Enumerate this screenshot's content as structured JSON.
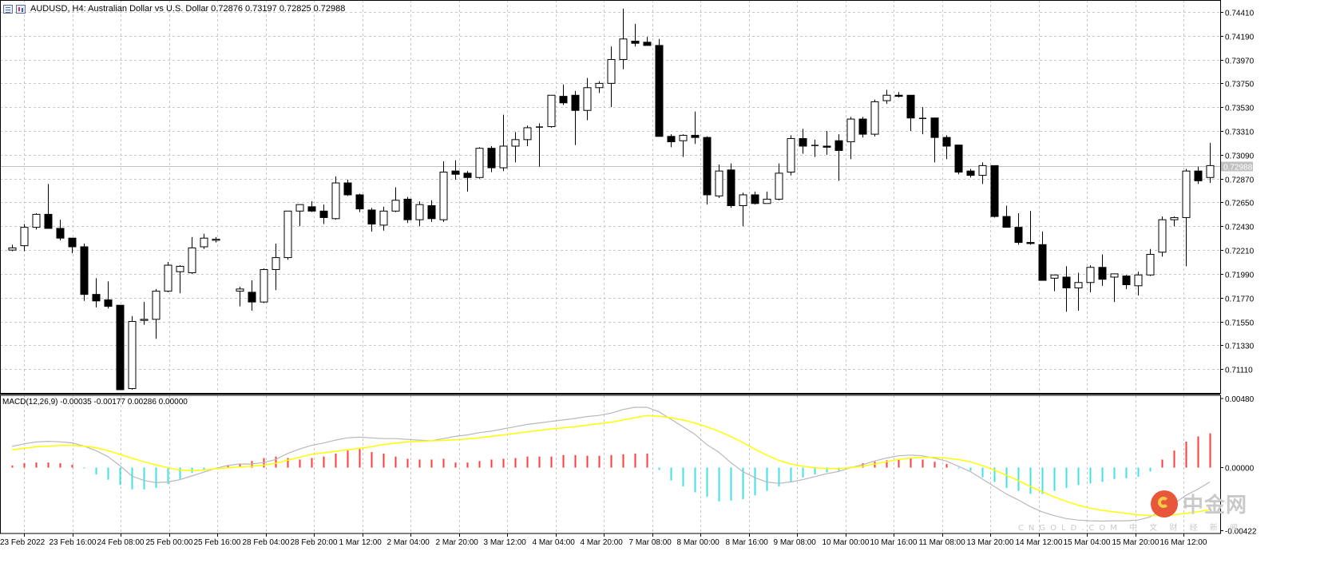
{
  "header": {
    "symbol_info": "AUDUSD, H4:  Australian Dollar vs U.S. Dollar  0.72876 0.73197 0.72825 0.72988",
    "icons": [
      "chart-bars-icon",
      "candles-icon"
    ]
  },
  "watermark": {
    "logo": "cngold-logo-icon",
    "name": "中金网",
    "url": "CNGOLD.COM",
    "tagline": "中 文 财 经 新 闻"
  },
  "colors": {
    "background": "#ffffff",
    "grid": "#c8c8c8",
    "bull_body": "#ffffff",
    "bear_body": "#000000",
    "candle_outline": "#000000",
    "macd_line": "#b8b8b8",
    "signal_line": "#ffff00",
    "hist_positive": "#ff3c3c",
    "hist_negative": "#40e0ea",
    "bid_line": "#c0c0c0",
    "bid_label_bg": "#c0c0c0"
  },
  "chart_data": [
    {
      "type": "candlestick",
      "title": "AUDUSD, H4",
      "price_scale": {
        "ylim": [
          0.7089,
          0.7452
        ],
        "tick_labels": [
          "0.74410",
          "0.74190",
          "0.73970",
          "0.73750",
          "0.73530",
          "0.73310",
          "0.73090",
          "0.72870",
          "0.72650",
          "0.72430",
          "0.72210",
          "0.71990",
          "0.71770",
          "0.71550",
          "0.71330",
          "0.71110"
        ],
        "current_bid_label": "0.72988",
        "current_bid": 0.72988
      },
      "grid": true,
      "time_labels": [
        "23 Feb 2022",
        "23 Feb 16:00",
        "24 Feb 08:00",
        "25 Feb 00:00",
        "25 Feb 16:00",
        "28 Feb 04:00",
        "28 Feb 20:00",
        "1 Mar 12:00",
        "2 Mar 04:00",
        "2 Mar 20:00",
        "3 Mar 12:00",
        "4 Mar 04:00",
        "4 Mar 20:00",
        "7 Mar 08:00",
        "8 Mar 00:00",
        "8 Mar 16:00",
        "9 Mar 08:00",
        "10 Mar 00:00",
        "10 Mar 16:00",
        "11 Mar 08:00",
        "13 Mar 20:00",
        "14 Mar 12:00",
        "15 Mar 04:00",
        "15 Mar 20:00",
        "16 Mar 12:00"
      ],
      "candles": [
        {
          "o": 0.7221,
          "h": 0.7226,
          "l": 0.722,
          "c": 0.7223
        },
        {
          "o": 0.7225,
          "h": 0.7245,
          "l": 0.722,
          "c": 0.7242
        },
        {
          "o": 0.7242,
          "h": 0.7255,
          "l": 0.724,
          "c": 0.7254
        },
        {
          "o": 0.7254,
          "h": 0.7282,
          "l": 0.7241,
          "c": 0.7241
        },
        {
          "o": 0.7241,
          "h": 0.7249,
          "l": 0.723,
          "c": 0.7232
        },
        {
          "o": 0.7232,
          "h": 0.7232,
          "l": 0.7218,
          "c": 0.7224
        },
        {
          "o": 0.7224,
          "h": 0.7227,
          "l": 0.7174,
          "c": 0.718
        },
        {
          "o": 0.718,
          "h": 0.7195,
          "l": 0.7168,
          "c": 0.7174
        },
        {
          "o": 0.7175,
          "h": 0.7192,
          "l": 0.7167,
          "c": 0.7169
        },
        {
          "o": 0.717,
          "h": 0.717,
          "l": 0.7092,
          "c": 0.7092
        },
        {
          "o": 0.7093,
          "h": 0.716,
          "l": 0.7092,
          "c": 0.7155
        },
        {
          "o": 0.7156,
          "h": 0.7173,
          "l": 0.7152,
          "c": 0.7157
        },
        {
          "o": 0.7157,
          "h": 0.7185,
          "l": 0.7139,
          "c": 0.7183
        },
        {
          "o": 0.7183,
          "h": 0.721,
          "l": 0.7182,
          "c": 0.7207
        },
        {
          "o": 0.7201,
          "h": 0.7207,
          "l": 0.7181,
          "c": 0.7206
        },
        {
          "o": 0.72,
          "h": 0.7233,
          "l": 0.7199,
          "c": 0.7223
        },
        {
          "o": 0.7224,
          "h": 0.7236,
          "l": 0.7222,
          "c": 0.7232
        },
        {
          "o": 0.723,
          "h": 0.7233,
          "l": 0.7228,
          "c": 0.7231
        },
        null,
        {
          "o": 0.7183,
          "h": 0.7187,
          "l": 0.7169,
          "c": 0.7185
        },
        {
          "o": 0.7182,
          "h": 0.7193,
          "l": 0.7165,
          "c": 0.7173
        },
        {
          "o": 0.7173,
          "h": 0.7204,
          "l": 0.7172,
          "c": 0.7203
        },
        {
          "o": 0.7203,
          "h": 0.7227,
          "l": 0.7184,
          "c": 0.7214
        },
        {
          "o": 0.7214,
          "h": 0.7255,
          "l": 0.7212,
          "c": 0.7257
        },
        {
          "o": 0.7257,
          "h": 0.7263,
          "l": 0.7243,
          "c": 0.7263
        },
        {
          "o": 0.7261,
          "h": 0.7266,
          "l": 0.7256,
          "c": 0.7257
        },
        {
          "o": 0.7257,
          "h": 0.7263,
          "l": 0.7245,
          "c": 0.7251
        },
        {
          "o": 0.725,
          "h": 0.7289,
          "l": 0.7249,
          "c": 0.7283
        },
        {
          "o": 0.7283,
          "h": 0.7286,
          "l": 0.7271,
          "c": 0.7272
        },
        {
          "o": 0.7272,
          "h": 0.7273,
          "l": 0.7256,
          "c": 0.7259
        },
        {
          "o": 0.7258,
          "h": 0.726,
          "l": 0.7238,
          "c": 0.7245
        },
        {
          "o": 0.7244,
          "h": 0.7261,
          "l": 0.7239,
          "c": 0.7257
        },
        {
          "o": 0.7257,
          "h": 0.7279,
          "l": 0.7256,
          "c": 0.7267
        },
        {
          "o": 0.7268,
          "h": 0.727,
          "l": 0.7246,
          "c": 0.7249
        },
        {
          "o": 0.7249,
          "h": 0.7266,
          "l": 0.7243,
          "c": 0.7263
        },
        {
          "o": 0.7262,
          "h": 0.7267,
          "l": 0.7247,
          "c": 0.725
        },
        {
          "o": 0.7249,
          "h": 0.7303,
          "l": 0.7247,
          "c": 0.7293
        },
        {
          "o": 0.7294,
          "h": 0.7304,
          "l": 0.7286,
          "c": 0.7291
        },
        {
          "o": 0.7292,
          "h": 0.7294,
          "l": 0.7275,
          "c": 0.7288
        },
        {
          "o": 0.7288,
          "h": 0.7316,
          "l": 0.7287,
          "c": 0.7315
        },
        {
          "o": 0.7315,
          "h": 0.7317,
          "l": 0.7293,
          "c": 0.7297
        },
        {
          "o": 0.7297,
          "h": 0.7346,
          "l": 0.7294,
          "c": 0.7317
        },
        {
          "o": 0.7317,
          "h": 0.733,
          "l": 0.7302,
          "c": 0.7323
        },
        {
          "o": 0.7323,
          "h": 0.7336,
          "l": 0.7317,
          "c": 0.7334
        },
        {
          "o": 0.7335,
          "h": 0.7338,
          "l": 0.7298,
          "c": 0.7335
        },
        {
          "o": 0.7335,
          "h": 0.7363,
          "l": 0.7334,
          "c": 0.7364
        },
        {
          "o": 0.7363,
          "h": 0.7374,
          "l": 0.7355,
          "c": 0.7357
        },
        {
          "o": 0.7364,
          "h": 0.7368,
          "l": 0.7318,
          "c": 0.735
        },
        {
          "o": 0.735,
          "h": 0.738,
          "l": 0.7341,
          "c": 0.7371
        },
        {
          "o": 0.7371,
          "h": 0.7377,
          "l": 0.7366,
          "c": 0.7375
        },
        {
          "o": 0.7375,
          "h": 0.7409,
          "l": 0.7353,
          "c": 0.7397
        },
        {
          "o": 0.7397,
          "h": 0.7444,
          "l": 0.7388,
          "c": 0.7416
        },
        {
          "o": 0.7414,
          "h": 0.743,
          "l": 0.7409,
          "c": 0.7412
        },
        {
          "o": 0.7413,
          "h": 0.7418,
          "l": 0.7411,
          "c": 0.741
        },
        {
          "o": 0.741,
          "h": 0.7416,
          "l": 0.7326,
          "c": 0.7326
        },
        {
          "o": 0.7326,
          "h": 0.7328,
          "l": 0.7316,
          "c": 0.7321
        },
        {
          "o": 0.7322,
          "h": 0.7328,
          "l": 0.7307,
          "c": 0.7327
        },
        {
          "o": 0.7327,
          "h": 0.7349,
          "l": 0.7319,
          "c": 0.7325
        },
        {
          "o": 0.7325,
          "h": 0.7326,
          "l": 0.7263,
          "c": 0.7272
        },
        {
          "o": 0.7271,
          "h": 0.73,
          "l": 0.7269,
          "c": 0.7294
        },
        {
          "o": 0.7295,
          "h": 0.7301,
          "l": 0.726,
          "c": 0.7262
        },
        {
          "o": 0.7262,
          "h": 0.7274,
          "l": 0.7243,
          "c": 0.7272
        },
        {
          "o": 0.7272,
          "h": 0.7275,
          "l": 0.7263,
          "c": 0.7264
        },
        {
          "o": 0.7264,
          "h": 0.7275,
          "l": 0.7265,
          "c": 0.7268
        },
        {
          "o": 0.7268,
          "h": 0.7301,
          "l": 0.7267,
          "c": 0.7292
        },
        {
          "o": 0.7293,
          "h": 0.7327,
          "l": 0.729,
          "c": 0.7324
        },
        {
          "o": 0.7324,
          "h": 0.7333,
          "l": 0.731,
          "c": 0.7317
        },
        {
          "o": 0.7318,
          "h": 0.7323,
          "l": 0.7307,
          "c": 0.7318
        },
        {
          "o": 0.7317,
          "h": 0.7331,
          "l": 0.7309,
          "c": 0.7316
        },
        {
          "o": 0.7322,
          "h": 0.7328,
          "l": 0.7285,
          "c": 0.7313
        },
        {
          "o": 0.7321,
          "h": 0.7344,
          "l": 0.7305,
          "c": 0.7342
        },
        {
          "o": 0.7342,
          "h": 0.7344,
          "l": 0.7325,
          "c": 0.7328
        },
        {
          "o": 0.7328,
          "h": 0.736,
          "l": 0.7326,
          "c": 0.7358
        },
        {
          "o": 0.7359,
          "h": 0.7369,
          "l": 0.7356,
          "c": 0.7364
        },
        {
          "o": 0.7364,
          "h": 0.7367,
          "l": 0.7362,
          "c": 0.7363
        },
        {
          "o": 0.7364,
          "h": 0.7364,
          "l": 0.7331,
          "c": 0.7343
        },
        {
          "o": 0.7343,
          "h": 0.7353,
          "l": 0.7328,
          "c": 0.7343
        },
        {
          "o": 0.7343,
          "h": 0.7343,
          "l": 0.7302,
          "c": 0.7325
        },
        {
          "o": 0.7325,
          "h": 0.7327,
          "l": 0.7305,
          "c": 0.7317
        },
        {
          "o": 0.7318,
          "h": 0.7318,
          "l": 0.7291,
          "c": 0.7293
        },
        {
          "o": 0.7294,
          "h": 0.7296,
          "l": 0.7288,
          "c": 0.729
        },
        {
          "o": 0.729,
          "h": 0.7302,
          "l": 0.7282,
          "c": 0.7299
        },
        {
          "o": 0.7299,
          "h": 0.7299,
          "l": 0.7251,
          "c": 0.7252
        },
        {
          "o": 0.7252,
          "h": 0.7262,
          "l": 0.7243,
          "c": 0.7242
        },
        {
          "o": 0.7242,
          "h": 0.7255,
          "l": 0.7226,
          "c": 0.7228
        },
        {
          "o": 0.7228,
          "h": 0.7257,
          "l": 0.7226,
          "c": 0.7227
        },
        {
          "o": 0.7226,
          "h": 0.7238,
          "l": 0.7193,
          "c": 0.7193
        },
        {
          "o": 0.7195,
          "h": 0.7196,
          "l": 0.7183,
          "c": 0.7198
        },
        {
          "o": 0.7196,
          "h": 0.7206,
          "l": 0.7164,
          "c": 0.7186
        },
        {
          "o": 0.7186,
          "h": 0.72,
          "l": 0.7165,
          "c": 0.7191
        },
        {
          "o": 0.7191,
          "h": 0.7207,
          "l": 0.7182,
          "c": 0.7205
        },
        {
          "o": 0.7205,
          "h": 0.7217,
          "l": 0.7188,
          "c": 0.7194
        },
        {
          "o": 0.7196,
          "h": 0.7199,
          "l": 0.7173,
          "c": 0.7199
        },
        {
          "o": 0.7197,
          "h": 0.7198,
          "l": 0.7185,
          "c": 0.7189
        },
        {
          "o": 0.7188,
          "h": 0.7201,
          "l": 0.7179,
          "c": 0.7198
        },
        {
          "o": 0.7198,
          "h": 0.7222,
          "l": 0.7197,
          "c": 0.7217
        },
        {
          "o": 0.7219,
          "h": 0.7252,
          "l": 0.7215,
          "c": 0.7249
        },
        {
          "o": 0.7249,
          "h": 0.7252,
          "l": 0.7243,
          "c": 0.7251
        },
        {
          "o": 0.7251,
          "h": 0.7296,
          "l": 0.7206,
          "c": 0.7294
        },
        {
          "o": 0.7294,
          "h": 0.7298,
          "l": 0.7282,
          "c": 0.7285
        },
        {
          "o": 0.7288,
          "h": 0.732,
          "l": 0.7283,
          "c": 0.7299
        }
      ]
    },
    {
      "type": "macd",
      "title": "MACD(12,26,9) -0.00035 -0.00177 0.00286 0.00000",
      "params": [
        12,
        26,
        9
      ],
      "ylim": [
        -0.00445,
        0.0048
      ],
      "tick_labels": [
        "0.00480",
        "0.00000",
        "-0.00422"
      ],
      "macd_line": [
        0.00138,
        0.00155,
        0.00168,
        0.00172,
        0.00169,
        0.00162,
        0.0014,
        0.0011,
        0.0007,
        0.0001,
        -0.0006,
        -0.0009,
        -0.00105,
        -0.001,
        -0.00085,
        -0.0006,
        -0.00035,
        -0.0001,
        0.0001,
        0.0002,
        0.0002,
        0.0003,
        0.0005,
        0.0009,
        0.0012,
        0.00145,
        0.0016,
        0.0018,
        0.00195,
        0.002,
        0.00195,
        0.0019,
        0.0019,
        0.00185,
        0.0018,
        0.00175,
        0.0019,
        0.00205,
        0.00215,
        0.0023,
        0.0024,
        0.00255,
        0.0027,
        0.00285,
        0.00295,
        0.00305,
        0.00315,
        0.00325,
        0.00338,
        0.00345,
        0.0036,
        0.00385,
        0.004,
        0.004,
        0.0037,
        0.0032,
        0.0027,
        0.0022,
        0.0015,
        0.001,
        0.0003,
        -0.0003,
        -0.0007,
        -0.001,
        -0.0011,
        -0.001,
        -0.00085,
        -0.00065,
        -0.00045,
        -0.0003,
        -5e-05,
        0.00015,
        0.0004,
        0.0006,
        0.00075,
        0.0008,
        0.00075,
        0.0006,
        0.0004,
        5e-05,
        -0.0003,
        -0.0008,
        -0.0013,
        -0.0018,
        -0.0022,
        -0.00265,
        -0.003,
        -0.00325,
        -0.00345,
        -0.00355,
        -0.0036,
        -0.00362,
        -0.0036,
        -0.0036,
        -0.00355,
        -0.00335,
        -0.0029,
        -0.00245,
        -0.0019,
        -0.00148,
        -0.001
      ],
      "signal_line": [
        0.00115,
        0.00125,
        0.00135,
        0.0014,
        0.00145,
        0.00145,
        0.0014,
        0.0013,
        0.0011,
        0.00085,
        0.0006,
        0.00035,
        0.00015,
        -5e-05,
        -0.0002,
        -0.00025,
        -0.0002,
        -0.00012,
        -5e-05,
        0.0,
        5e-05,
        0.00012,
        0.00025,
        0.00045,
        0.00065,
        0.00085,
        0.00095,
        0.00105,
        0.00115,
        0.00125,
        0.00135,
        0.0015,
        0.0016,
        0.00168,
        0.00172,
        0.00175,
        0.00178,
        0.00182,
        0.00188,
        0.00195,
        0.00205,
        0.00215,
        0.00225,
        0.00235,
        0.00245,
        0.00255,
        0.00262,
        0.0027,
        0.0028,
        0.0029,
        0.003,
        0.00315,
        0.0033,
        0.00345,
        0.0034,
        0.0033,
        0.00315,
        0.00295,
        0.0027,
        0.0024,
        0.00205,
        0.00165,
        0.0012,
        0.0008,
        0.00045,
        0.0002,
        5e-05,
        -5e-05,
        -0.0001,
        -0.0001,
        -5e-05,
        5e-05,
        0.0002,
        0.00035,
        0.0005,
        0.0006,
        0.00065,
        0.00065,
        0.0006,
        0.0005,
        0.00035,
        0.0001,
        -0.0002,
        -0.00055,
        -0.0009,
        -0.0013,
        -0.00165,
        -0.002,
        -0.0023,
        -0.00255,
        -0.00275,
        -0.0029,
        -0.003,
        -0.0031,
        -0.0032,
        -0.00325,
        -0.00325,
        -0.0032,
        -0.0031,
        -0.003,
        -0.00285
      ],
      "histogram": [
        0.0001,
        0.00025,
        0.0003,
        0.0003,
        0.00025,
        0.00015,
        -0.0001,
        -0.0005,
        -0.00085,
        -0.0012,
        -0.0015,
        -0.0015,
        -0.0014,
        -0.00115,
        -0.0008,
        -0.0004,
        -0.0002,
        -5e-05,
        0.0001,
        0.0002,
        0.0004,
        0.0006,
        0.0007,
        0.0006,
        0.0005,
        0.0006,
        0.0007,
        0.0009,
        0.0011,
        0.0012,
        0.001,
        0.0009,
        0.0007,
        0.00055,
        0.0005,
        0.0005,
        0.00055,
        0.0003,
        0.0003,
        0.0004,
        0.0005,
        0.00055,
        0.0006,
        0.0007,
        0.0007,
        0.0007,
        0.0008,
        0.0008,
        0.00075,
        0.00075,
        0.0008,
        0.00085,
        0.0009,
        0.0009,
        -0.0002,
        -0.0009,
        -0.0013,
        -0.0017,
        -0.002,
        -0.0023,
        -0.00225,
        -0.00215,
        -0.0019,
        -0.0016,
        -0.0013,
        -0.001,
        -0.0007,
        -0.0005,
        -0.00035,
        -0.00025,
        0.0,
        0.00025,
        0.00035,
        0.00045,
        0.00055,
        0.0006,
        0.0005,
        0.00035,
        0.0002,
        -0.0001,
        -0.00025,
        -0.0007,
        -0.001,
        -0.0014,
        -0.0016,
        -0.0018,
        -0.0018,
        -0.0016,
        -0.0014,
        -0.0012,
        -0.0011,
        -0.001,
        -0.0008,
        -0.00075,
        -0.00065,
        -0.0003,
        0.0005,
        0.0011,
        0.0017,
        0.00205,
        0.00225
      ]
    }
  ]
}
